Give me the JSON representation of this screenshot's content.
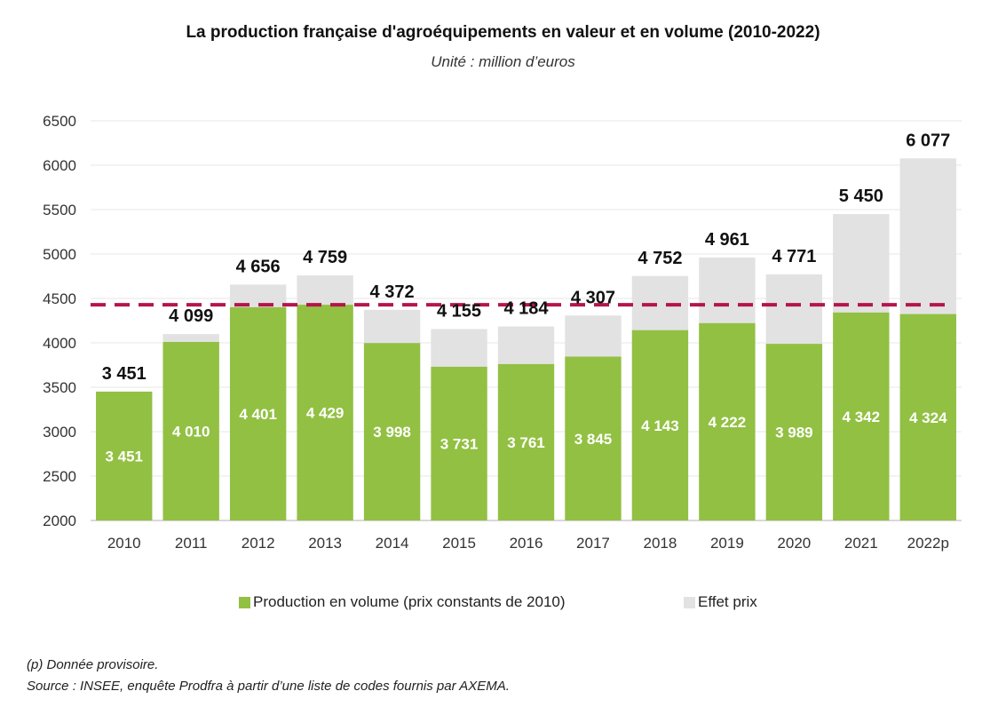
{
  "title": "La production française d'agroéquipements en valeur et en volume (2010-2022)",
  "subtitle": "Unité :  million d’euros",
  "colors": {
    "volume": "#92c043",
    "prix": "#e2e2e2",
    "reference_line": "#b5154b",
    "grid": "#efefef",
    "axis": "#d9d9d9"
  },
  "legend": [
    {
      "label": "Production en volume (prix constants de 2010)",
      "color_key": "volume"
    },
    {
      "label": "Effet prix",
      "color_key": "prix"
    }
  ],
  "footnotes": [
    "(p) Donnée provisoire.",
    "Source :  INSEE, enquête Prodfra à partir d’une liste de codes fournis par AXEMA."
  ],
  "chart_data": {
    "type": "bar",
    "stacked": true,
    "title": "La production française d'agroéquipements en valeur et en volume (2010-2022)",
    "subtitle": "Unité :  million d’euros",
    "xlabel": "",
    "ylabel": "",
    "categories": [
      "2010",
      "2011",
      "2012",
      "2013",
      "2014",
      "2015",
      "2016",
      "2017",
      "2018",
      "2019",
      "2020",
      "2021",
      "2022p"
    ],
    "series": [
      {
        "name": "Production en volume (prix constants de 2010)",
        "values": [
          3451,
          4010,
          4401,
          4429,
          3998,
          3731,
          3761,
          3845,
          4143,
          4222,
          3989,
          4342,
          4324
        ]
      },
      {
        "name": "Effet prix",
        "values": [
          0,
          89,
          255,
          330,
          374,
          424,
          423,
          462,
          609,
          739,
          782,
          1108,
          1753
        ]
      }
    ],
    "totals": [
      3451,
      4099,
      4656,
      4759,
      4372,
      4155,
      4184,
      4307,
      4752,
      4961,
      4771,
      5450,
      6077
    ],
    "volume_labels": [
      "3 451",
      "4 010",
      "4 401",
      "4 429",
      "3 998",
      "3 731",
      "3 761",
      "3 845",
      "4 143",
      "4 222",
      "3 989",
      "4 342",
      "4 324"
    ],
    "total_labels": [
      "3 451",
      "4 099",
      "4 656",
      "4 759",
      "4 372",
      "4 155",
      "4 184",
      "4 307",
      "4 752",
      "4 961",
      "4 771",
      "5 450",
      "6 077"
    ],
    "reference_line": {
      "value": 4429,
      "style": "dashed"
    },
    "ylim": [
      2000,
      6500
    ],
    "yticks": [
      2000,
      2500,
      3000,
      3500,
      4000,
      4500,
      5000,
      5500,
      6000,
      6500
    ],
    "grid": true,
    "legend_position": "bottom"
  }
}
